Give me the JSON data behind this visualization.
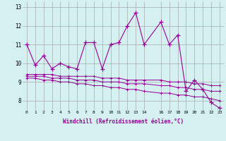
{
  "x": [
    0,
    1,
    2,
    3,
    4,
    5,
    6,
    7,
    8,
    9,
    10,
    11,
    12,
    13,
    14,
    16,
    17,
    18,
    19,
    20,
    21,
    22,
    23
  ],
  "line1": [
    11.0,
    9.9,
    10.4,
    9.7,
    10.0,
    9.8,
    9.7,
    11.1,
    11.1,
    9.7,
    11.0,
    11.1,
    12.0,
    12.7,
    11.0,
    12.2,
    11.0,
    11.5,
    8.5,
    9.1,
    8.6,
    7.9,
    7.6
  ],
  "line2": [
    9.4,
    9.4,
    9.4,
    9.4,
    9.3,
    9.3,
    9.3,
    9.3,
    9.3,
    9.2,
    9.2,
    9.2,
    9.1,
    9.1,
    9.1,
    9.1,
    9.0,
    9.0,
    9.0,
    8.9,
    8.9,
    8.8,
    8.8
  ],
  "line3": [
    9.3,
    9.3,
    9.3,
    9.2,
    9.2,
    9.2,
    9.1,
    9.1,
    9.1,
    9.0,
    9.0,
    9.0,
    8.9,
    8.9,
    8.9,
    8.8,
    8.8,
    8.7,
    8.7,
    8.6,
    8.6,
    8.5,
    8.5
  ],
  "line4": [
    9.2,
    9.2,
    9.1,
    9.1,
    9.0,
    9.0,
    8.9,
    8.9,
    8.8,
    8.8,
    8.7,
    8.7,
    8.6,
    8.6,
    8.5,
    8.4,
    8.4,
    8.3,
    8.3,
    8.2,
    8.2,
    8.1,
    8.0
  ],
  "color": "#990099",
  "bg_color": "#d4f0f0",
  "grid_color": "#aaaaaa",
  "xlabel": "Windchill (Refroidissement éolien,°C)",
  "xlim": [
    -0.5,
    23.5
  ],
  "ylim": [
    7.5,
    13.3
  ],
  "yticks": [
    8,
    9,
    10,
    11,
    12,
    13
  ],
  "xticks": [
    0,
    1,
    2,
    3,
    4,
    5,
    6,
    7,
    8,
    9,
    10,
    11,
    12,
    13,
    14,
    16,
    17,
    18,
    19,
    20,
    21,
    22,
    23
  ]
}
